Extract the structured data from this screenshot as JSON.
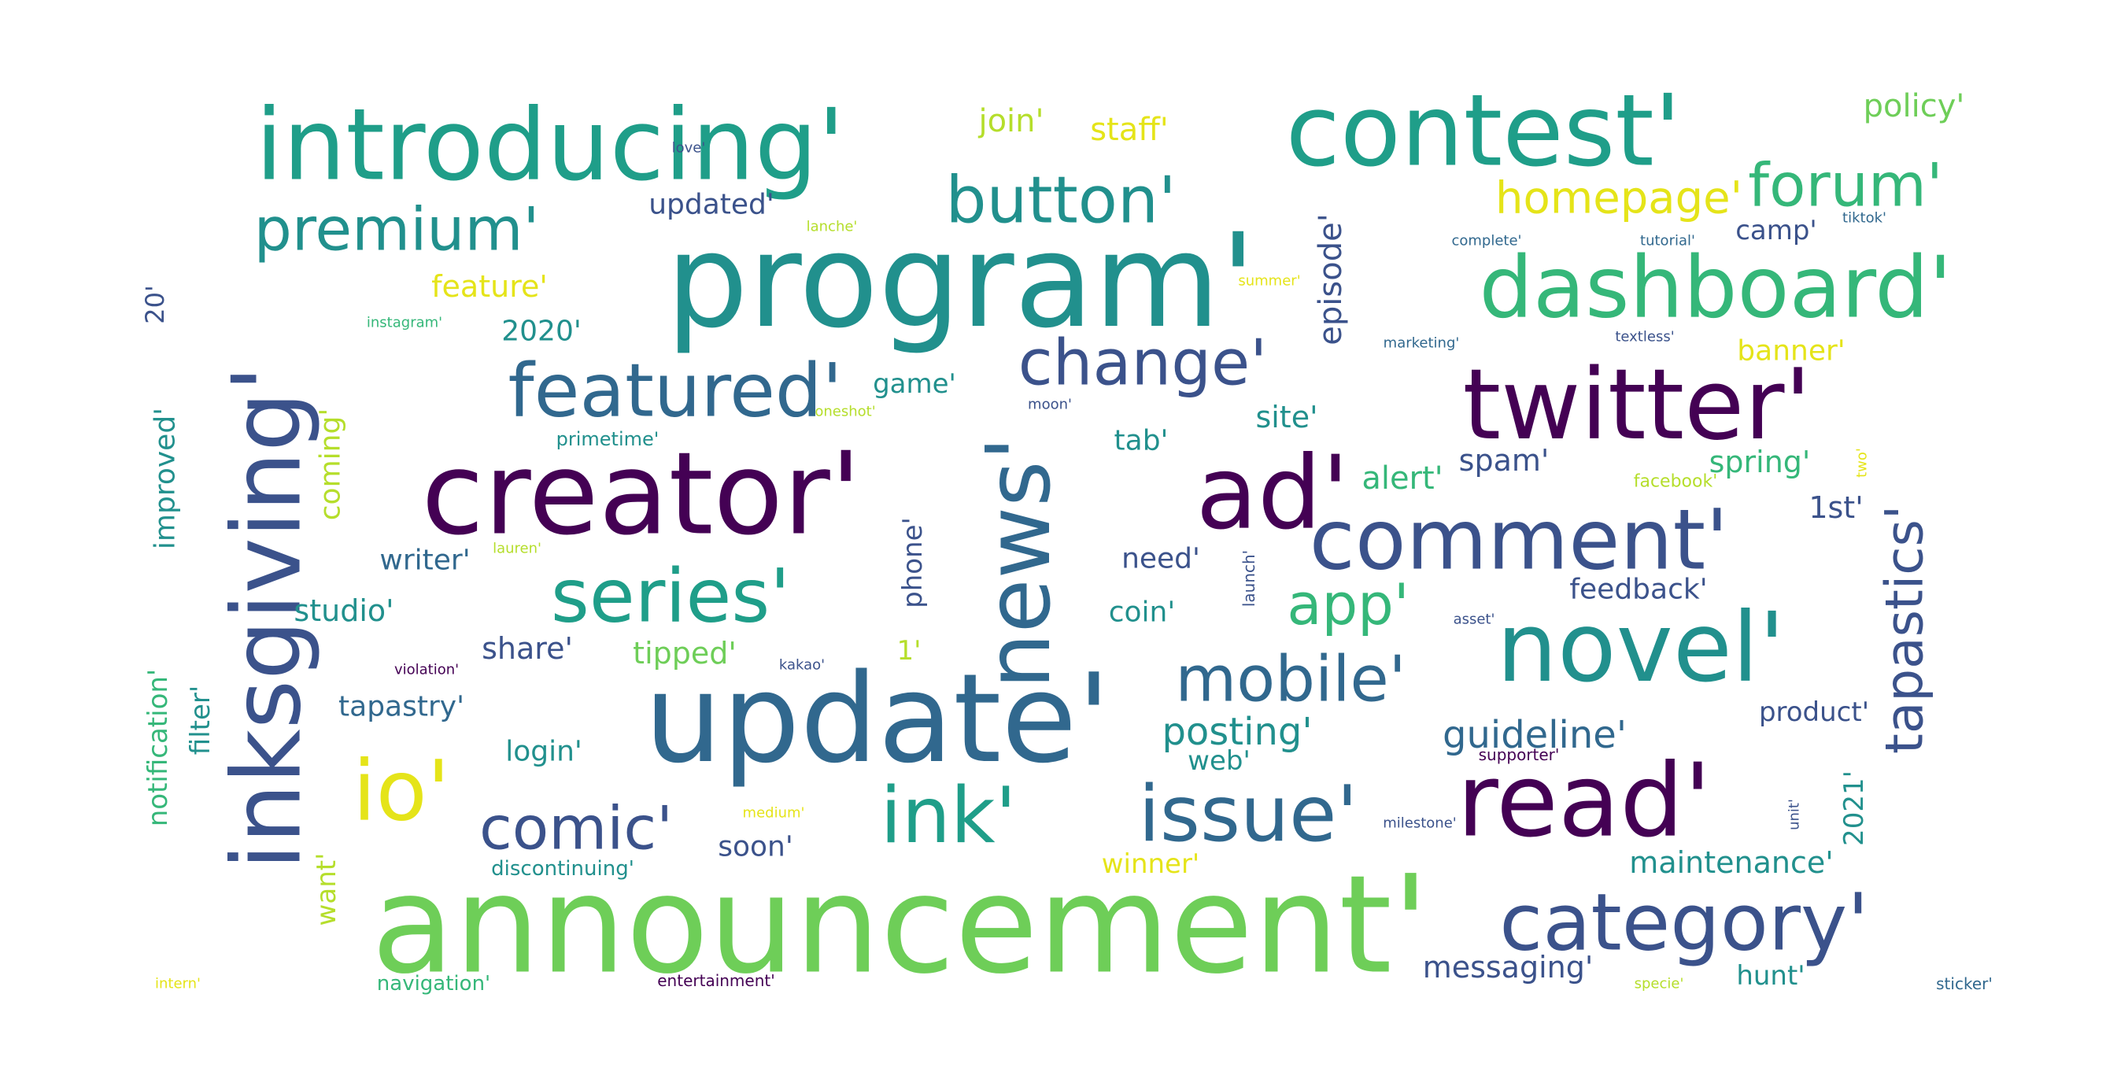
{
  "palette": {
    "background": "#ffffff",
    "dark_purple": "#440154",
    "indigo": "#3b528b",
    "blue": "#31688e",
    "teal": "#21908d",
    "sea_green": "#1f9e89",
    "green": "#35b779",
    "light_green": "#6ece58",
    "yellow_green": "#b5de2b",
    "yellow": "#e5e419"
  },
  "words": [
    {
      "text": "announcement'",
      "color": "#6ece58"
    },
    {
      "text": "program'",
      "color": "#21908d"
    },
    {
      "text": "update'",
      "color": "#31688e"
    },
    {
      "text": "creator'",
      "color": "#440154"
    },
    {
      "text": "introducing'",
      "color": "#1f9e89"
    },
    {
      "text": "contest'",
      "color": "#1f9e89"
    },
    {
      "text": "inksgiving'",
      "color": "#3b528b"
    },
    {
      "text": "twitter'",
      "color": "#440154"
    },
    {
      "text": "dashboard'",
      "color": "#35b779"
    },
    {
      "text": "ad'",
      "color": "#440154"
    },
    {
      "text": "read'",
      "color": "#440154"
    },
    {
      "text": "novel'",
      "color": "#21908d"
    },
    {
      "text": "news'",
      "color": "#31688e"
    },
    {
      "text": "comment'",
      "color": "#3b528b"
    },
    {
      "text": "category'",
      "color": "#3b528b"
    },
    {
      "text": "ink'",
      "color": "#1f9e89"
    },
    {
      "text": "issue'",
      "color": "#31688e"
    },
    {
      "text": "featured'",
      "color": "#31688e"
    },
    {
      "text": "series'",
      "color": "#1f9e89"
    },
    {
      "text": "button'",
      "color": "#21908d"
    },
    {
      "text": "premium'",
      "color": "#21908d"
    },
    {
      "text": "mobile'",
      "color": "#31688e"
    },
    {
      "text": "change'",
      "color": "#3b528b"
    },
    {
      "text": "forum'",
      "color": "#35b779"
    },
    {
      "text": "comic'",
      "color": "#3b528b"
    },
    {
      "text": "io'",
      "color": "#e5e419"
    },
    {
      "text": "tapastics'",
      "color": "#3b528b"
    },
    {
      "text": "app'",
      "color": "#35b779"
    },
    {
      "text": "homepage'",
      "color": "#e5e419"
    },
    {
      "text": "posting'",
      "color": "#21908d"
    },
    {
      "text": "guideline'",
      "color": "#31688e"
    },
    {
      "text": "episode'",
      "color": "#3b528b"
    },
    {
      "text": "alert'",
      "color": "#35b779"
    },
    {
      "text": "spam'",
      "color": "#3b528b"
    },
    {
      "text": "spring'",
      "color": "#35b779"
    },
    {
      "text": "1st'",
      "color": "#3b528b"
    },
    {
      "text": "feedback'",
      "color": "#3b528b"
    },
    {
      "text": "product'",
      "color": "#3b528b"
    },
    {
      "text": "maintenance'",
      "color": "#21908d"
    },
    {
      "text": "messaging'",
      "color": "#3b528b"
    },
    {
      "text": "2021'",
      "color": "#21908d"
    },
    {
      "text": "banner'",
      "color": "#e5e419"
    },
    {
      "text": "camp'",
      "color": "#3b528b"
    },
    {
      "text": "site'",
      "color": "#21908d"
    },
    {
      "text": "tab'",
      "color": "#21908d"
    },
    {
      "text": "need'",
      "color": "#3b528b"
    },
    {
      "text": "coin'",
      "color": "#21908d"
    },
    {
      "text": "web'",
      "color": "#21908d"
    },
    {
      "text": "phone'",
      "color": "#3b528b"
    },
    {
      "text": "game'",
      "color": "#21908d"
    },
    {
      "text": "join'",
      "color": "#b5de2b"
    },
    {
      "text": "staff'",
      "color": "#e5e419"
    },
    {
      "text": "updated'",
      "color": "#3b528b"
    },
    {
      "text": "policy'",
      "color": "#6ece58"
    },
    {
      "text": "feature'",
      "color": "#e5e419"
    },
    {
      "text": "2020'",
      "color": "#21908d"
    },
    {
      "text": "20'",
      "color": "#3b528b"
    },
    {
      "text": "improved'",
      "color": "#21908d"
    },
    {
      "text": "coming'",
      "color": "#b5de2b"
    },
    {
      "text": "writer'",
      "color": "#31688e"
    },
    {
      "text": "studio'",
      "color": "#21908d"
    },
    {
      "text": "share'",
      "color": "#3b528b"
    },
    {
      "text": "tipped'",
      "color": "#6ece58"
    },
    {
      "text": "1'",
      "color": "#b5de2b"
    },
    {
      "text": "tapastry'",
      "color": "#31688e"
    },
    {
      "text": "login'",
      "color": "#21908d"
    },
    {
      "text": "soon'",
      "color": "#3b528b"
    },
    {
      "text": "winner'",
      "color": "#e5e419"
    },
    {
      "text": "hunt'",
      "color": "#21908d"
    },
    {
      "text": "notification'",
      "color": "#35b779"
    },
    {
      "text": "filter'",
      "color": "#21908d"
    },
    {
      "text": "want'",
      "color": "#b5de2b"
    },
    {
      "text": "discontinuing'",
      "color": "#21908d"
    },
    {
      "text": "navigation'",
      "color": "#35b779"
    },
    {
      "text": "entertainment'",
      "color": "#440154"
    },
    {
      "text": "intern'",
      "color": "#e5e419"
    },
    {
      "text": "specie'",
      "color": "#b5de2b"
    },
    {
      "text": "sticker'",
      "color": "#31688e"
    },
    {
      "text": "medium'",
      "color": "#e5e419"
    },
    {
      "text": "milestone'",
      "color": "#3b528b"
    },
    {
      "text": "unit'",
      "color": "#3b528b"
    },
    {
      "text": "supporter'",
      "color": "#440154"
    },
    {
      "text": "asset'",
      "color": "#3b528b"
    },
    {
      "text": "violation'",
      "color": "#440154"
    },
    {
      "text": "kakao'",
      "color": "#3b528b"
    },
    {
      "text": "lauren'",
      "color": "#b5de2b"
    },
    {
      "text": "launch'",
      "color": "#3b528b"
    },
    {
      "text": "facebook'",
      "color": "#b5de2b"
    },
    {
      "text": "two'",
      "color": "#e5e419"
    },
    {
      "text": "primetime'",
      "color": "#21908d"
    },
    {
      "text": "oneshot'",
      "color": "#b5de2b"
    },
    {
      "text": "moon'",
      "color": "#3b528b"
    },
    {
      "text": "instagram'",
      "color": "#35b779"
    },
    {
      "text": "summer'",
      "color": "#e5e419"
    },
    {
      "text": "marketing'",
      "color": "#31688e"
    },
    {
      "text": "textless'",
      "color": "#3b528b"
    },
    {
      "text": "complete'",
      "color": "#31688e"
    },
    {
      "text": "tutorial'",
      "color": "#31688e"
    },
    {
      "text": "tiktok'",
      "color": "#31688e"
    },
    {
      "text": "lanche'",
      "color": "#b5de2b"
    },
    {
      "text": "love'",
      "color": "#3b528b"
    }
  ]
}
